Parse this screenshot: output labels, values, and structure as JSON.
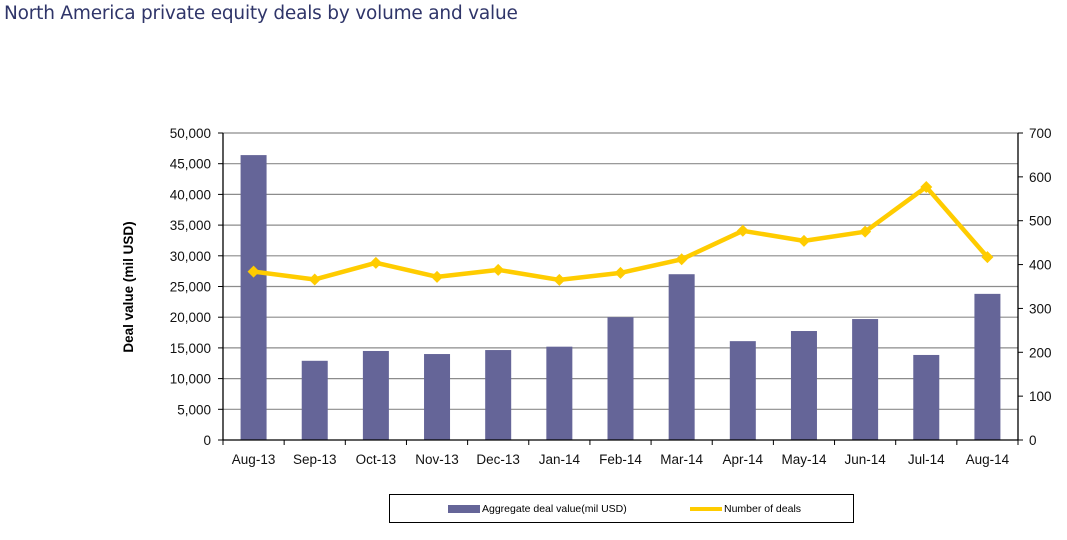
{
  "title": "North America private equity deals by volume and value",
  "colors": {
    "bar": "#656598",
    "line": "#ffcc00",
    "title": "#2f3569",
    "grid": "#8c8c8c",
    "axis": "#000000"
  },
  "chart_data": {
    "type": "bar+line",
    "title": "North America private equity deals by volume and value",
    "categories": [
      "Aug-13",
      "Sep-13",
      "Oct-13",
      "Nov-13",
      "Dec-13",
      "Jan-14",
      "Feb-14",
      "Mar-14",
      "Apr-14",
      "May-14",
      "Jun-14",
      "Jul-14",
      "Aug-14"
    ],
    "series": [
      {
        "name": "Aggregate deal value(mil USD)",
        "type": "bar",
        "axis": "left",
        "values": [
          46400,
          12900,
          14500,
          14000,
          14650,
          15200,
          20000,
          27000,
          16100,
          17750,
          19700,
          13850,
          23800
        ]
      },
      {
        "name": "Number of deals",
        "type": "line",
        "axis": "right",
        "marker": "diamond",
        "values": [
          384,
          366,
          404,
          372,
          388,
          365,
          381,
          412,
          477,
          454,
          475,
          577,
          417
        ]
      }
    ],
    "xlabel": "",
    "ylabel": "Deal value (mil USD)",
    "y2label": "",
    "ylim": [
      0,
      50000
    ],
    "y_ticks": [
      0,
      5000,
      10000,
      15000,
      20000,
      25000,
      30000,
      35000,
      40000,
      45000,
      50000
    ],
    "y_tick_labels": [
      "0",
      "5,000",
      "10,000",
      "15,000",
      "20,000",
      "25,000",
      "30,000",
      "35,000",
      "40,000",
      "45,000",
      "50,000"
    ],
    "y2lim": [
      0,
      700
    ],
    "y2_ticks": [
      0,
      100,
      200,
      300,
      400,
      500,
      600,
      700
    ],
    "y2_tick_labels": [
      "0",
      "100",
      "200",
      "300",
      "400",
      "500",
      "600",
      "700"
    ],
    "grid": true,
    "legend_position": "bottom"
  }
}
